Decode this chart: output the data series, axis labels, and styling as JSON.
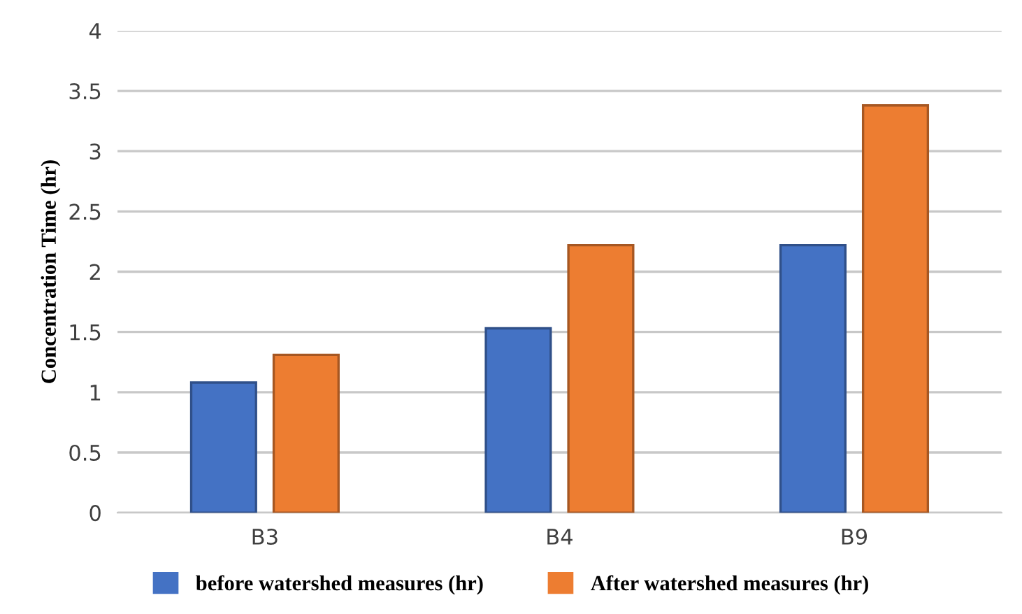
{
  "chart_data": {
    "type": "bar",
    "ylabel": "Concentration Time (hr)",
    "categories": [
      "B3",
      "B4",
      "B9"
    ],
    "series": [
      {
        "name": "before watershed measures (hr)",
        "color": "#4472c4",
        "values": [
          1.08,
          1.53,
          2.22
        ]
      },
      {
        "name": "After watershed measures (hr)",
        "color": "#ed7d31",
        "values": [
          1.31,
          2.22,
          3.38
        ]
      }
    ],
    "ylim": [
      0,
      4
    ],
    "yticks": [
      0,
      0.5,
      1,
      1.5,
      2,
      2.5,
      3,
      3.5,
      4
    ],
    "grid": "y",
    "legend": "bottom"
  }
}
